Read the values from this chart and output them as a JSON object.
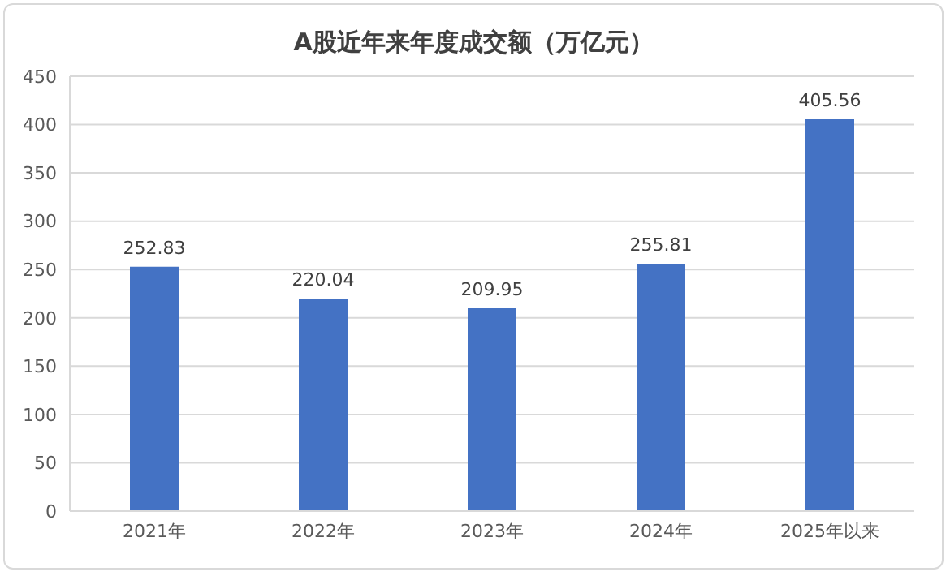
{
  "chart_data": {
    "type": "bar",
    "title": "A股近年来年度成交额（万亿元）",
    "categories": [
      "2021年",
      "2022年",
      "2023年",
      "2024年",
      "2025年以来"
    ],
    "values": [
      252.83,
      220.04,
      209.95,
      255.81,
      405.56
    ],
    "color": "#4472c4",
    "ylim": [
      0,
      450
    ],
    "yticks": [
      0,
      50,
      100,
      150,
      200,
      250,
      300,
      350,
      400,
      450
    ],
    "grid": "y",
    "data_labels": true,
    "legend": false
  }
}
